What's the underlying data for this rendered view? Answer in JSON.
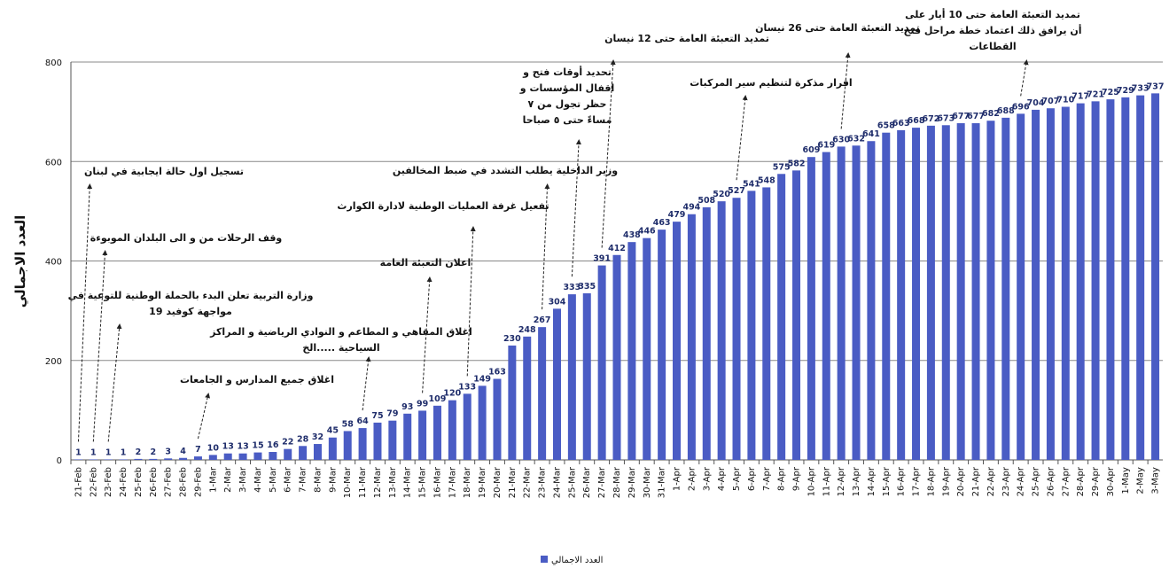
{
  "chart_data": {
    "type": "bar",
    "y_label": "العدد الاجمالي",
    "categories": [
      "21-Feb",
      "22-Feb",
      "23-Feb",
      "24-Feb",
      "25-Feb",
      "26-Feb",
      "27-Feb",
      "28-Feb",
      "29-Feb",
      "1-Mar",
      "2-Mar",
      "3-Mar",
      "4-Mar",
      "5-Mar",
      "6-Mar",
      "7-Mar",
      "8-Mar",
      "9-Mar",
      "10-Mar",
      "11-Mar",
      "12-Mar",
      "13-Mar",
      "14-Mar",
      "15-Mar",
      "16-Mar",
      "17-Mar",
      "18-Mar",
      "19-Mar",
      "20-Mar",
      "21-Mar",
      "22-Mar",
      "23-Mar",
      "24-Mar",
      "25-Mar",
      "26-Mar",
      "27-Mar",
      "28-Mar",
      "29-Mar",
      "30-Mar",
      "31-Mar",
      "1-Apr",
      "2-Apr",
      "3-Apr",
      "4-Apr",
      "5-Apr",
      "6-Apr",
      "7-Apr",
      "8-Apr",
      "9-Apr",
      "10-Apr",
      "11-Apr",
      "12-Apr",
      "13-Apr",
      "14-Apr",
      "15-Apr",
      "16-Apr",
      "17-Apr",
      "18-Apr",
      "19-Apr",
      "20-Apr",
      "21-Apr",
      "22-Apr",
      "23-Apr",
      "24-Apr",
      "25-Apr",
      "26-Apr",
      "27-Apr",
      "28-Apr",
      "29-Apr",
      "30-Apr",
      "1-May",
      "2-May",
      "3-May"
    ],
    "series": [
      {
        "name": "العدد الاجمالي",
        "color": "#4a5cc4",
        "values": [
          1,
          1,
          1,
          1,
          2,
          2,
          3,
          4,
          7,
          10,
          13,
          13,
          15,
          16,
          22,
          28,
          32,
          45,
          58,
          64,
          75,
          79,
          93,
          99,
          109,
          120,
          133,
          149,
          163,
          230,
          248,
          267,
          304,
          333,
          335,
          391,
          412,
          438,
          446,
          463,
          479,
          494,
          508,
          520,
          527,
          541,
          548,
          575,
          582,
          609,
          619,
          630,
          632,
          641,
          658,
          663,
          668,
          672,
          673,
          677,
          677,
          682,
          688,
          696,
          704,
          707,
          710,
          717,
          721,
          725,
          729,
          733,
          737
        ]
      }
    ],
    "ylim": [
      0,
      800
    ],
    "yticks": [
      0,
      200,
      400,
      600,
      800
    ],
    "grid": true,
    "legend": "bottom",
    "annotations": [
      {
        "lines": [
          "تسجيل اول حالة ايجابية في لبنان"
        ],
        "at": "21-Feb"
      },
      {
        "lines": [
          "وقف الرحلات من و الى البلدان الموبوءة"
        ],
        "at": "22-Feb"
      },
      {
        "lines": [
          "وزارة التربية تعلن البدء بالحملة الوطنية للتوعية في",
          "مواجهة كوفيد 19"
        ],
        "at": "23-Feb"
      },
      {
        "lines": [
          "اغلاق جميع المدارس و الجامعات"
        ],
        "at": "29-Feb"
      },
      {
        "lines": [
          "اغلاق المقاهي و المطاعم و النوادي الرياضية و المراكز",
          "السياحية .....الخ"
        ],
        "at": "11-Mar"
      },
      {
        "lines": [
          "اعلان التعبئة العامة"
        ],
        "at": "15-Mar"
      },
      {
        "lines": [
          "تفعيل غرفة العمليات الوطنية لادارة الكوارث"
        ],
        "at": "18-Mar"
      },
      {
        "lines": [
          "وزير الداخلية يطلب التشدد في ضبط المخالفين"
        ],
        "at": "23-Mar"
      },
      {
        "lines": [
          "تحديد أوقات فتح و",
          "اقفال المؤسسات و",
          "حظر تجول من ٧",
          "مساءً حتى ٥ صباحا"
        ],
        "at": "25-Mar"
      },
      {
        "lines": [
          "تمديد التعبئة العامة حتى 12 نيسان"
        ],
        "at": "27-Mar"
      },
      {
        "lines": [
          "اقرار مذكرة لتنظيم سير المركبات"
        ],
        "at": "5-Apr"
      },
      {
        "lines": [
          "تمديد التعبئة العامة حتى 26 نيسان"
        ],
        "at": "12-Apr"
      },
      {
        "lines": [
          "تمديد التعبئة العامة حتى 10 أيار على",
          "أن يرافق ذلك اعتماد خطة مراحل فتح",
          "القطاعات"
        ],
        "at": "24-Apr"
      }
    ]
  }
}
